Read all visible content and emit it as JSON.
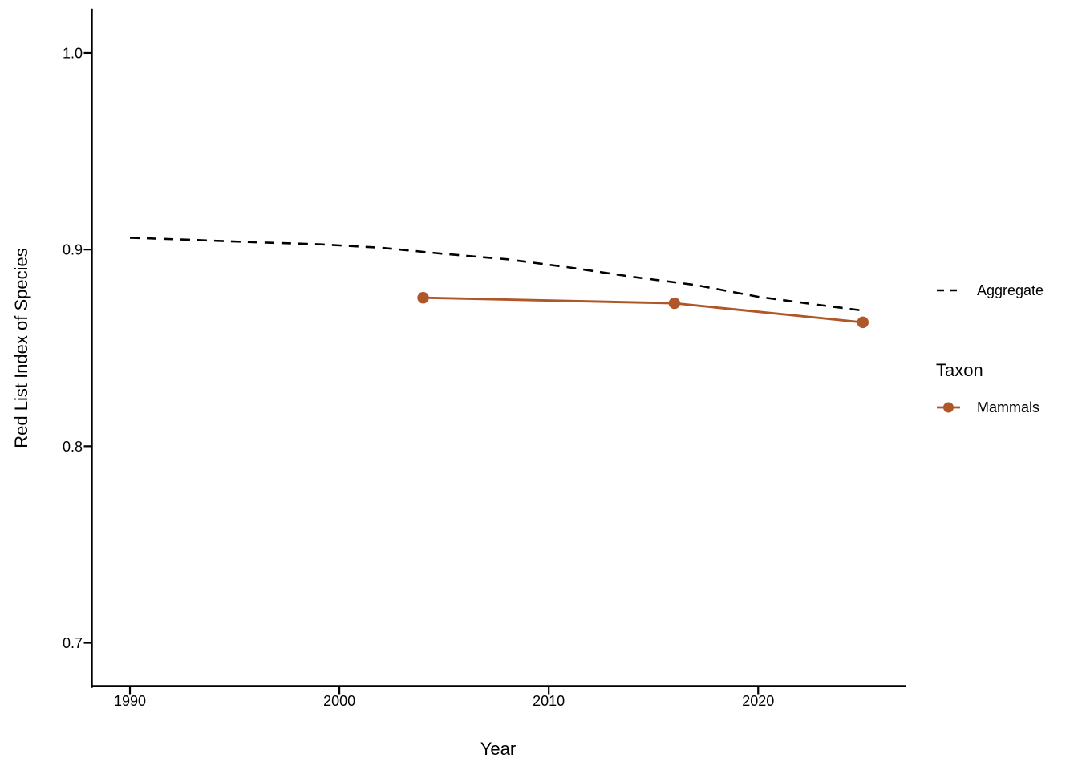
{
  "chart_data": {
    "type": "line",
    "title": "",
    "xlabel": "Year",
    "ylabel": "Red List Index of Species",
    "x_ticks": [
      1990,
      2000,
      2010,
      2020
    ],
    "x_tick_labels": [
      "1990",
      "2000",
      "2010",
      "2020"
    ],
    "y_ticks": [
      0.7,
      0.8,
      0.9,
      1.0
    ],
    "y_tick_labels": [
      "0.7",
      "0.8",
      "0.9",
      "1.0"
    ],
    "xlim": [
      1988.18,
      2027.0
    ],
    "ylim": [
      0.678,
      1.022
    ],
    "grid": false,
    "legend_position": "right",
    "series": [
      {
        "name": "Aggregate",
        "color": "#000000",
        "linetype": "dashed",
        "markers": false,
        "x": [
          1990,
          1993,
          1996,
          1999,
          2002,
          2005,
          2008,
          2011,
          2014,
          2017,
          2020,
          2023,
          2025
        ],
        "y": [
          0.906,
          0.9049,
          0.9037,
          0.9027,
          0.9009,
          0.8978,
          0.8951,
          0.8909,
          0.8861,
          0.882,
          0.876,
          0.8717,
          0.869
        ]
      },
      {
        "name": "Mammals",
        "color": "#B0572A",
        "linetype": "solid",
        "markers": true,
        "x": [
          2004,
          2016,
          2025
        ],
        "y": [
          0.8755,
          0.8727,
          0.863
        ]
      }
    ],
    "legend": {
      "groups": [
        {
          "title": "",
          "items": [
            {
              "label": "Aggregate",
              "key": "dashed-line",
              "color": "#000000"
            }
          ]
        },
        {
          "title": "Taxon",
          "items": [
            {
              "label": "Mammals",
              "key": "line-with-point",
              "color": "#B0572A"
            }
          ]
        }
      ]
    }
  }
}
